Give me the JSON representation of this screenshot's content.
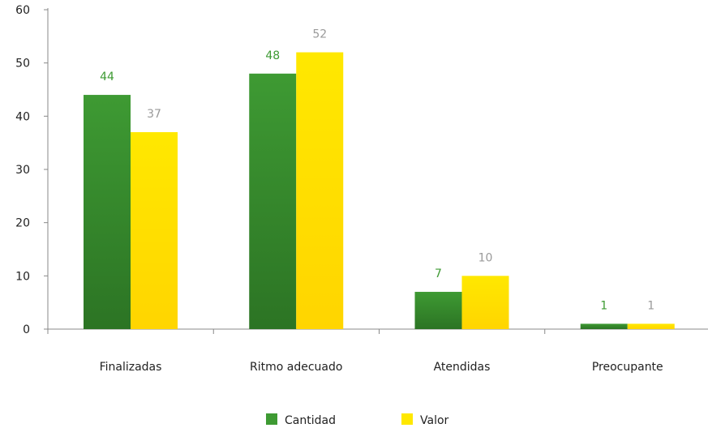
{
  "chart_data": {
    "type": "bar",
    "categories": [
      "Finalizadas",
      "Ritmo adecuado",
      "Atendidas",
      "Preocupante"
    ],
    "series": [
      {
        "name": "Cantidad",
        "values": [
          44,
          48,
          7,
          1
        ],
        "color_top": "#3e9a33",
        "color_bottom": "#2c7424",
        "label_color": "#3e9a33"
      },
      {
        "name": "Valor",
        "values": [
          37,
          52,
          10,
          1
        ],
        "color_top": "#ffe800",
        "color_bottom": "#ffd500",
        "label_color": "#9a9a9a"
      }
    ],
    "yticks": [
      "0",
      "10",
      "20",
      "30",
      "40",
      "50",
      "60"
    ],
    "ylim": [
      0,
      60
    ],
    "grid": false,
    "legend": "bottom-center",
    "title": "",
    "xlabel": "",
    "ylabel": ""
  }
}
